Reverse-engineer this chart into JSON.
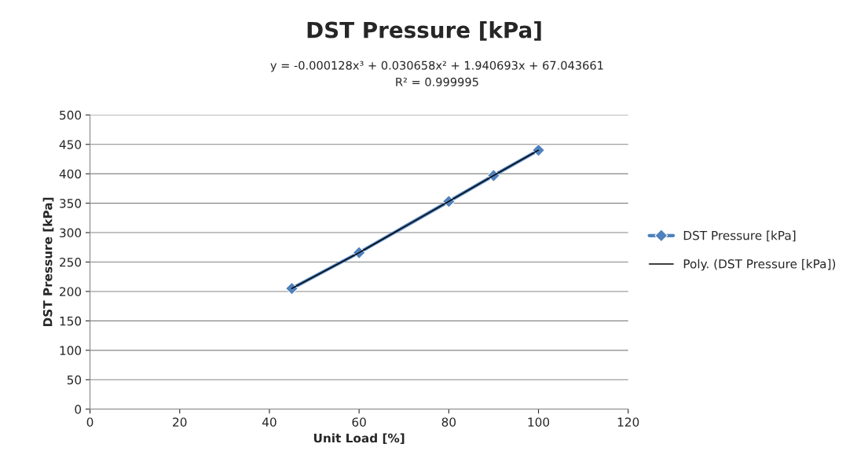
{
  "chart_data": {
    "type": "line",
    "title": "DST Pressure [kPa]",
    "annotations": [
      "y = -0.000128x³ + 0.030658x² + 1.940693x + 67.043661",
      "R² = 0.999995"
    ],
    "xlabel": "Unit Load [%]",
    "ylabel": "DST Pressure [kPa]",
    "x": [
      45,
      60,
      80,
      90,
      100
    ],
    "series": [
      {
        "name": "DST Pressure [kPa]",
        "color": "#4f81bd",
        "values": [
          205,
          266,
          353,
          397,
          440
        ],
        "marker": "diamond"
      },
      {
        "name": "Poly. (DST Pressure [kPa])",
        "color": "#000000",
        "values": [
          205,
          266,
          353,
          397,
          440
        ],
        "marker": "none"
      }
    ],
    "xlim": [
      0,
      120
    ],
    "xticks": [
      0,
      20,
      40,
      60,
      80,
      100,
      120
    ],
    "ylim": [
      0,
      500
    ],
    "yticks": [
      0,
      50,
      100,
      150,
      200,
      250,
      300,
      350,
      400,
      450,
      500
    ],
    "grid": "y",
    "legend": "right"
  }
}
